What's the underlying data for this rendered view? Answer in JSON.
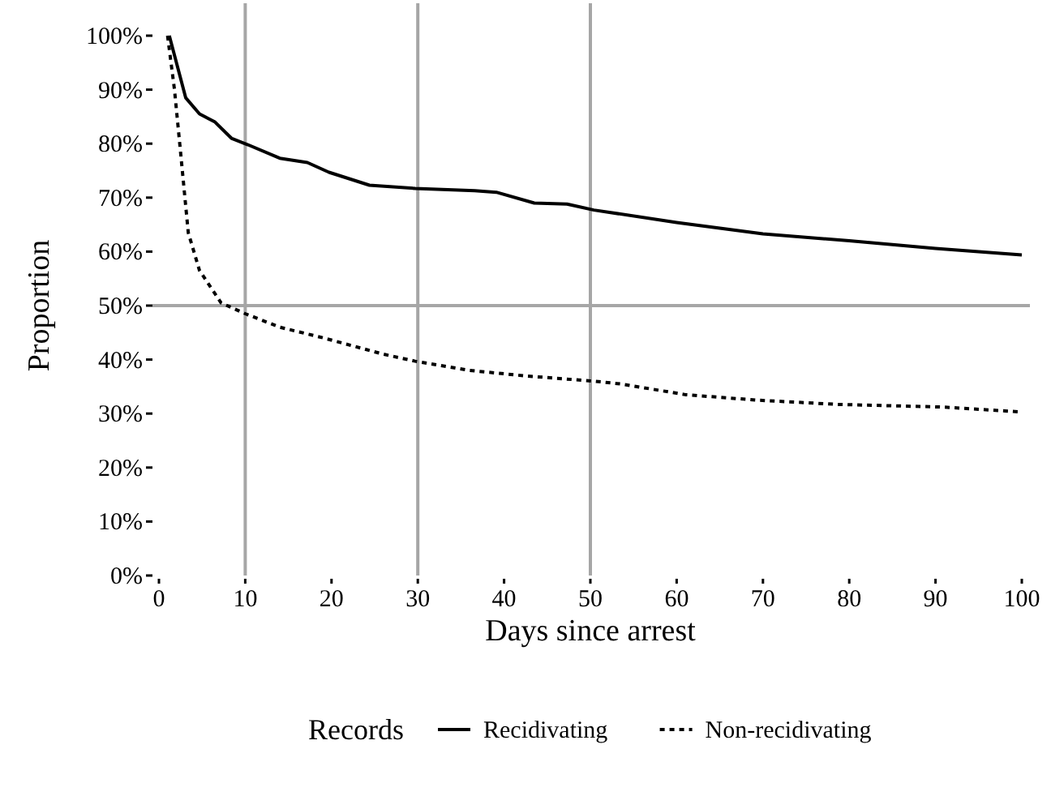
{
  "chart_data": {
    "type": "line",
    "xlabel": "Days since arrest",
    "ylabel": "Proportion",
    "legend_title": "Records",
    "legend": "bottom",
    "xlim": [
      0,
      100
    ],
    "xticks": [
      0,
      10,
      20,
      30,
      40,
      50,
      60,
      70,
      80,
      90,
      100
    ],
    "ylim": [
      0,
      100
    ],
    "yticks": [
      {
        "value": 0,
        "label": "0%"
      },
      {
        "value": 10,
        "label": "10%"
      },
      {
        "value": 20,
        "label": "20%"
      },
      {
        "value": 30,
        "label": "30%"
      },
      {
        "value": 40,
        "label": "40%"
      },
      {
        "value": 50,
        "label": "50%"
      },
      {
        "value": 60,
        "label": "60%"
      },
      {
        "value": 70,
        "label": "70%"
      },
      {
        "value": 80,
        "label": "80%"
      },
      {
        "value": 90,
        "label": "90%"
      },
      {
        "value": 100,
        "label": "100%"
      }
    ],
    "grid": false,
    "ref_lines": [
      {
        "axis": "x",
        "value": 10,
        "color": "#a6a6a6"
      },
      {
        "axis": "x",
        "value": 30,
        "color": "#a6a6a6"
      },
      {
        "axis": "x",
        "value": 50,
        "color": "#a6a6a6"
      },
      {
        "axis": "y",
        "value": 50,
        "color": "#a6a6a6"
      }
    ],
    "series": [
      {
        "name": "Recidivating",
        "color": "#000000",
        "line_style": "solid",
        "x": [
          1.2,
          3.1,
          4.7,
          6.5,
          8.4,
          10.3,
          14,
          17.2,
          19.7,
          24.4,
          29.7,
          36.6,
          39.1,
          43.5,
          47.3,
          50.4,
          60,
          70,
          80,
          90,
          100
        ],
        "values": [
          100,
          88.5,
          85.5,
          84,
          81,
          79.8,
          77.3,
          76.5,
          74.7,
          72.3,
          71.7,
          71.3,
          71,
          69,
          68.8,
          67.7,
          65.4,
          63.3,
          62,
          60.6,
          59.4
        ]
      },
      {
        "name": "Non-recidivating",
        "color": "#000000",
        "line_style": "dotted",
        "x": [
          1,
          1.8,
          2.5,
          3.4,
          4.7,
          7.2,
          10,
          14,
          19.1,
          26,
          29.7,
          36,
          42.3,
          50.4,
          53.5,
          61,
          69.2,
          78.6,
          91,
          100
        ],
        "values": [
          100,
          90,
          78.5,
          63.5,
          56.5,
          50.5,
          48.5,
          46,
          44,
          41,
          39.7,
          38,
          37,
          36,
          35.5,
          33.5,
          32.5,
          31.7,
          31.2,
          30.3
        ]
      }
    ]
  }
}
